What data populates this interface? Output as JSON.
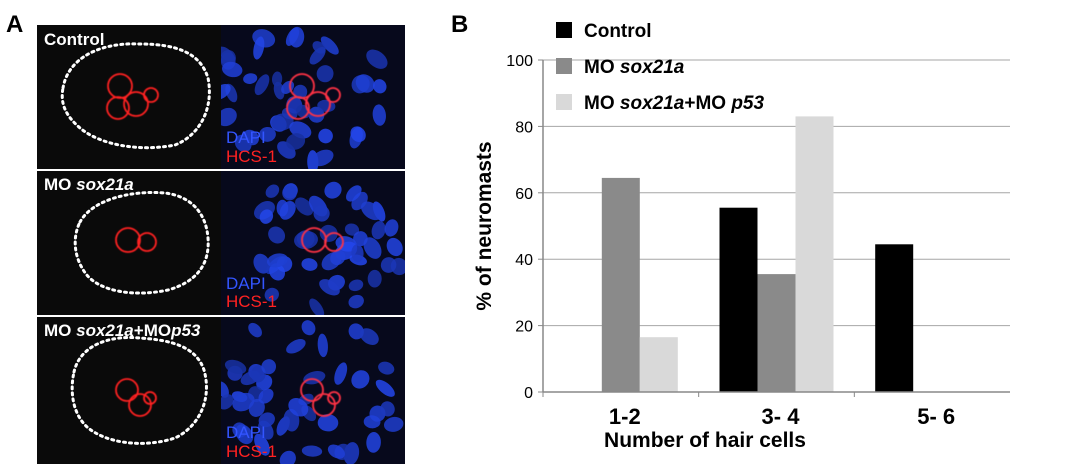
{
  "panel_a": {
    "letter": "A",
    "rows": [
      {
        "label_parts": [
          {
            "text": "Control",
            "italic": false
          }
        ],
        "stain1": "DAPI",
        "stain2": "HCS-1"
      },
      {
        "label_parts": [
          {
            "text": "MO ",
            "italic": false
          },
          {
            "text": "sox21a",
            "italic": true
          }
        ],
        "stain1": "DAPI",
        "stain2": "HCS-1"
      },
      {
        "label_parts": [
          {
            "text": "MO ",
            "italic": false
          },
          {
            "text": "sox21a",
            "italic": true
          },
          {
            "text": "+MO",
            "italic": false
          },
          {
            "text": "p53",
            "italic": true
          }
        ],
        "stain1": "DAPI",
        "stain2": "HCS-1"
      }
    ],
    "colors": {
      "dapi": "#3355ff",
      "hcs1": "#ff2222",
      "background": "#0a0a0a"
    }
  },
  "panel_b": {
    "letter": "B",
    "legend": [
      {
        "parts": [
          {
            "text": "Control",
            "italic": false
          }
        ],
        "color": "#000000"
      },
      {
        "parts": [
          {
            "text": "MO ",
            "italic": false
          },
          {
            "text": "sox21a",
            "italic": true
          }
        ],
        "color": "#8a8a8a"
      },
      {
        "parts": [
          {
            "text": "MO ",
            "italic": false
          },
          {
            "text": "sox21a",
            "italic": true
          },
          {
            "text": "+MO ",
            "italic": false
          },
          {
            "text": "p53",
            "italic": true
          }
        ],
        "color": "#d9d9d9"
      }
    ]
  },
  "chart_data": {
    "type": "bar",
    "categories": [
      "1-2",
      "3- 4",
      "5- 6"
    ],
    "series": [
      {
        "name": "Control",
        "color": "#000000",
        "values": [
          0,
          55.5,
          44.5
        ]
      },
      {
        "name": "MO sox21a",
        "color": "#8a8a8a",
        "values": [
          64.5,
          35.5,
          0
        ]
      },
      {
        "name": "MO sox21a+MO p53",
        "color": "#d9d9d9",
        "values": [
          16.5,
          83,
          0
        ]
      }
    ],
    "ylim": [
      0,
      100
    ],
    "yticks": [
      0,
      20,
      40,
      60,
      80,
      100
    ],
    "xlabel": "Number of hair cells",
    "ylabel": "% of neuromasts",
    "grid": true,
    "legend_position": "top-left"
  }
}
